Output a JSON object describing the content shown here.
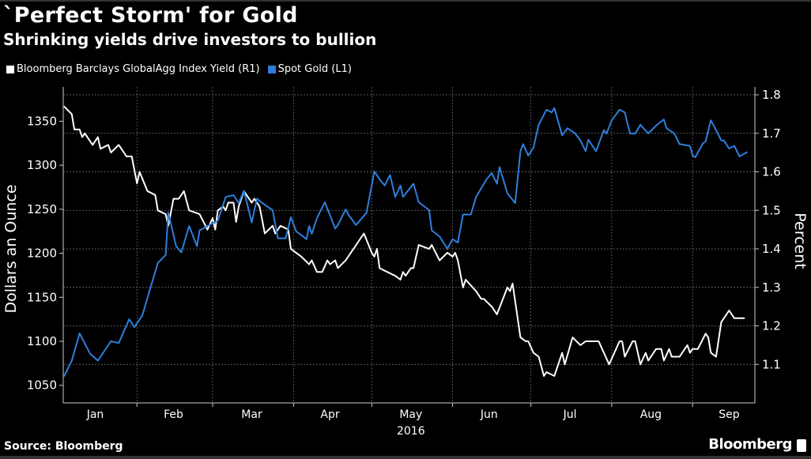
{
  "chart_data": {
    "type": "line",
    "title": "`Perfect Storm' for Gold",
    "subtitle": "Shrinking yields drive investors to bullion",
    "ylabel_left": "Dollars an Ounce",
    "ylabel_right": "Percent",
    "xlabel_year": "2016",
    "legend_placement": "top-left",
    "grid": true,
    "left_axis": {
      "ylim": [
        1030,
        1380
      ],
      "ticks": [
        1050,
        1100,
        1150,
        1200,
        1250,
        1300,
        1350
      ]
    },
    "right_axis": {
      "ylim": [
        1.0,
        1.8
      ],
      "ticks": [
        "1.1",
        "1.2",
        "1.3",
        "1.4",
        "1.5",
        "1.6",
        "1.7",
        "1.8"
      ]
    },
    "x_months": [
      "Jan",
      "Feb",
      "Mar",
      "Apr",
      "May",
      "Jun",
      "Jul",
      "Aug",
      "Sep"
    ],
    "series": [
      {
        "name": "Bloomberg Barclays GlobalAgg Index Yield (R1)",
        "axis": "right",
        "color": "#ffffff",
        "x": [
          "2016-01-04",
          "2016-01-07",
          "2016-01-08",
          "2016-01-10",
          "2016-01-11",
          "2016-01-12",
          "2016-01-15",
          "2016-01-17",
          "2016-01-18",
          "2016-01-21",
          "2016-01-22",
          "2016-01-25",
          "2016-01-28",
          "2016-01-30",
          "2016-02-01",
          "2016-02-02",
          "2016-02-05",
          "2016-02-08",
          "2016-02-09",
          "2016-02-12",
          "2016-02-13",
          "2016-02-15",
          "2016-02-17",
          "2016-02-19",
          "2016-02-21",
          "2016-02-25",
          "2016-02-28",
          "2016-03-01",
          "2016-03-02",
          "2016-03-03",
          "2016-03-05",
          "2016-03-06",
          "2016-03-07",
          "2016-03-09",
          "2016-03-10",
          "2016-03-11",
          "2016-03-13",
          "2016-03-14",
          "2016-03-16",
          "2016-03-17",
          "2016-03-19",
          "2016-03-21",
          "2016-03-24",
          "2016-03-25",
          "2016-03-27",
          "2016-03-30",
          "2016-03-31",
          "2016-04-02",
          "2016-04-04",
          "2016-04-07",
          "2016-04-08",
          "2016-04-10",
          "2016-04-12",
          "2016-04-14",
          "2016-04-15",
          "2016-04-17",
          "2016-04-18",
          "2016-04-21",
          "2016-04-24",
          "2016-04-28",
          "2016-05-01",
          "2016-05-02",
          "2016-05-03",
          "2016-05-04",
          "2016-05-07",
          "2016-05-10",
          "2016-05-12",
          "2016-05-13",
          "2016-05-14",
          "2016-05-16",
          "2016-05-17",
          "2016-05-19",
          "2016-05-23",
          "2016-05-24",
          "2016-05-27",
          "2016-05-30",
          "2016-06-01",
          "2016-06-02",
          "2016-06-03",
          "2016-06-05",
          "2016-06-06",
          "2016-06-10",
          "2016-06-12",
          "2016-06-13",
          "2016-06-16",
          "2016-06-18",
          "2016-06-22",
          "2016-06-23",
          "2016-06-24",
          "2016-06-27",
          "2016-06-29",
          "2016-06-30",
          "2016-07-02",
          "2016-07-04",
          "2016-07-06",
          "2016-07-07",
          "2016-07-10",
          "2016-07-13",
          "2016-07-14",
          "2016-07-17",
          "2016-07-20",
          "2016-07-22",
          "2016-07-27",
          "2016-07-29",
          "2016-07-31",
          "2016-08-04",
          "2016-08-05",
          "2016-08-06",
          "2016-08-09",
          "2016-08-10",
          "2016-08-12",
          "2016-08-14",
          "2016-08-15",
          "2016-08-18",
          "2016-08-20",
          "2016-08-21",
          "2016-08-23",
          "2016-08-24",
          "2016-08-27",
          "2016-08-30",
          "2016-08-31",
          "2016-09-01",
          "2016-09-03",
          "2016-09-06",
          "2016-09-07",
          "2016-09-08",
          "2016-09-10",
          "2016-09-12",
          "2016-09-13",
          "2016-09-15",
          "2016-09-17",
          "2016-09-21"
        ],
        "values": [
          1.77,
          1.75,
          1.71,
          1.71,
          1.69,
          1.7,
          1.67,
          1.69,
          1.66,
          1.67,
          1.65,
          1.67,
          1.64,
          1.64,
          1.57,
          1.6,
          1.55,
          1.54,
          1.5,
          1.49,
          1.46,
          1.53,
          1.53,
          1.55,
          1.5,
          1.49,
          1.45,
          1.48,
          1.45,
          1.5,
          1.51,
          1.5,
          1.52,
          1.52,
          1.47,
          1.51,
          1.55,
          1.54,
          1.52,
          1.53,
          1.51,
          1.44,
          1.46,
          1.44,
          1.46,
          1.45,
          1.4,
          1.39,
          1.38,
          1.36,
          1.37,
          1.34,
          1.34,
          1.37,
          1.36,
          1.37,
          1.35,
          1.37,
          1.4,
          1.44,
          1.39,
          1.38,
          1.4,
          1.35,
          1.34,
          1.33,
          1.32,
          1.34,
          1.33,
          1.35,
          1.35,
          1.41,
          1.4,
          1.41,
          1.37,
          1.39,
          1.38,
          1.39,
          1.37,
          1.3,
          1.32,
          1.29,
          1.27,
          1.27,
          1.25,
          1.23,
          1.3,
          1.29,
          1.31,
          1.17,
          1.16,
          1.16,
          1.13,
          1.12,
          1.07,
          1.08,
          1.07,
          1.13,
          1.1,
          1.17,
          1.15,
          1.16,
          1.16,
          1.13,
          1.1,
          1.16,
          1.16,
          1.12,
          1.16,
          1.16,
          1.1,
          1.13,
          1.11,
          1.14,
          1.14,
          1.11,
          1.14,
          1.12,
          1.12,
          1.15,
          1.13,
          1.14,
          1.14,
          1.18,
          1.17,
          1.13,
          1.12,
          1.21,
          1.22,
          1.24,
          1.22,
          1.22
        ]
      },
      {
        "name": "Spot Gold (L1)",
        "axis": "left",
        "color": "#2d7fdb",
        "x": [
          "2016-01-04",
          "2016-01-07",
          "2016-01-10",
          "2016-01-14",
          "2016-01-17",
          "2016-01-22",
          "2016-01-25",
          "2016-01-29",
          "2016-01-31",
          "2016-02-03",
          "2016-02-09",
          "2016-02-12",
          "2016-02-13",
          "2016-02-16",
          "2016-02-18",
          "2016-02-21",
          "2016-02-24",
          "2016-02-25",
          "2016-02-28",
          "2016-03-03",
          "2016-03-06",
          "2016-03-09",
          "2016-03-11",
          "2016-03-13",
          "2016-03-16",
          "2016-03-18",
          "2016-03-21",
          "2016-03-24",
          "2016-03-26",
          "2016-03-29",
          "2016-03-31",
          "2016-04-02",
          "2016-04-06",
          "2016-04-07",
          "2016-04-08",
          "2016-04-10",
          "2016-04-13",
          "2016-04-17",
          "2016-04-18",
          "2016-04-21",
          "2016-04-22",
          "2016-04-25",
          "2016-04-29",
          "2016-05-02",
          "2016-05-04",
          "2016-05-06",
          "2016-05-08",
          "2016-05-10",
          "2016-05-12",
          "2016-05-13",
          "2016-05-17",
          "2016-05-19",
          "2016-05-23",
          "2016-05-24",
          "2016-05-27",
          "2016-05-30",
          "2016-06-01",
          "2016-06-03",
          "2016-06-05",
          "2016-06-08",
          "2016-06-10",
          "2016-06-14",
          "2016-06-16",
          "2016-06-18",
          "2016-06-19",
          "2016-06-22",
          "2016-06-25",
          "2016-06-27",
          "2016-06-28",
          "2016-06-30",
          "2016-07-02",
          "2016-07-04",
          "2016-07-07",
          "2016-07-09",
          "2016-07-10",
          "2016-07-13",
          "2016-07-15",
          "2016-07-18",
          "2016-07-20",
          "2016-07-22",
          "2016-07-23",
          "2016-07-26",
          "2016-07-29",
          "2016-07-30",
          "2016-08-01",
          "2016-08-04",
          "2016-08-06",
          "2016-08-08",
          "2016-08-10",
          "2016-08-12",
          "2016-08-15",
          "2016-08-18",
          "2016-08-21",
          "2016-08-22",
          "2016-08-25",
          "2016-08-27",
          "2016-08-31",
          "2016-09-01",
          "2016-09-02",
          "2016-09-05",
          "2016-09-06",
          "2016-09-08",
          "2016-09-10",
          "2016-09-12",
          "2016-09-13",
          "2016-09-15",
          "2016-09-17",
          "2016-09-19",
          "2016-09-22"
        ],
        "values": [
          1060,
          1078,
          1109,
          1086,
          1078,
          1100,
          1098,
          1125,
          1116,
          1129,
          1189,
          1198,
          1246,
          1208,
          1201,
          1231,
          1208,
          1226,
          1231,
          1237,
          1264,
          1266,
          1257,
          1271,
          1235,
          1262,
          1255,
          1249,
          1217,
          1217,
          1241,
          1225,
          1216,
          1231,
          1222,
          1240,
          1258,
          1228,
          1232,
          1250,
          1244,
          1232,
          1246,
          1293,
          1284,
          1277,
          1289,
          1264,
          1277,
          1264,
          1279,
          1258,
          1249,
          1226,
          1219,
          1205,
          1216,
          1212,
          1244,
          1244,
          1264,
          1284,
          1291,
          1279,
          1298,
          1268,
          1257,
          1316,
          1324,
          1311,
          1320,
          1346,
          1363,
          1360,
          1365,
          1334,
          1342,
          1336,
          1328,
          1316,
          1329,
          1316,
          1340,
          1336,
          1351,
          1363,
          1360,
          1336,
          1336,
          1346,
          1336,
          1345,
          1352,
          1342,
          1336,
          1324,
          1322,
          1311,
          1309,
          1325,
          1327,
          1351,
          1340,
          1328,
          1328,
          1319,
          1322,
          1310,
          1315
        ]
      }
    ]
  },
  "footer": {
    "source": "Source: Bloomberg",
    "brand": "Bloomberg"
  }
}
